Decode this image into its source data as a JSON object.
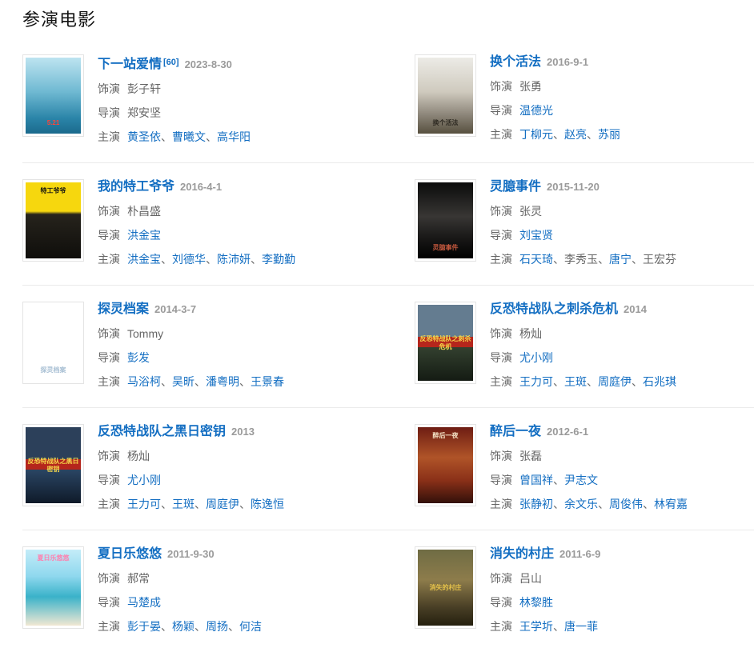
{
  "page": {
    "title": "参演电影"
  },
  "colors": {
    "link_blue": "#136ec2",
    "text_gray": "#666666",
    "date_gray": "#9a9a9a",
    "separator_line": "#ebebeb",
    "poster_border": "#e4e4e4",
    "heading": "#141414"
  },
  "labels": {
    "role": "饰演",
    "director": "导演",
    "starring": "主演",
    "name_separator": "、"
  },
  "movies": [
    {
      "title": "下一站爱情",
      "ref_sup": "[60]",
      "date": "2023-8-30",
      "role": "彭子轩",
      "directors": [
        {
          "text": "郑安坚",
          "link": false
        }
      ],
      "cast": [
        {
          "text": "黄圣依",
          "link": true
        },
        {
          "text": "曹曦文",
          "link": true
        },
        {
          "text": "高华阳",
          "link": true
        }
      ],
      "poster": {
        "colors": [
          "#bde4f0 0%",
          "#6fb9d2 45%",
          "#2a84a8 80%",
          "#1b6a8d 100%"
        ],
        "overlay": "5.21",
        "overlay_color": "#ff4438",
        "overlay_pos": "bottom"
      }
    },
    {
      "title": "换个活法",
      "ref_sup": "",
      "date": "2016-9-1",
      "role": "张勇",
      "directors": [
        {
          "text": "温德光",
          "link": true
        }
      ],
      "cast": [
        {
          "text": "丁柳元",
          "link": true
        },
        {
          "text": "赵亮",
          "link": true
        },
        {
          "text": "苏丽",
          "link": true
        }
      ],
      "poster": {
        "colors": [
          "#ecebe6 0%",
          "#cfcabe 45%",
          "#8d867a 75%",
          "#57503f 100%"
        ],
        "overlay": "换个活法",
        "overlay_color": "#2e2a22",
        "overlay_pos": "bottom"
      }
    },
    {
      "title": "我的特工爷爷",
      "ref_sup": "",
      "date": "2016-4-1",
      "role": "朴昌盛",
      "directors": [
        {
          "text": "洪金宝",
          "link": true
        }
      ],
      "cast": [
        {
          "text": "洪金宝",
          "link": true
        },
        {
          "text": "刘德华",
          "link": true
        },
        {
          "text": "陈沛妍",
          "link": true
        },
        {
          "text": "李勤勤",
          "link": true
        }
      ],
      "poster": {
        "colors": [
          "#f6d70e 0%",
          "#f6d70e 38%",
          "#26231c 42%",
          "#0f0e0b 100%"
        ],
        "overlay": "特工爷爷",
        "overlay_color": "#111111",
        "overlay_pos": "top"
      }
    },
    {
      "title": "灵臆事件",
      "ref_sup": "",
      "date": "2015-11-20",
      "role": "张灵",
      "directors": [
        {
          "text": "刘宝贤",
          "link": true
        }
      ],
      "cast": [
        {
          "text": "石天琦",
          "link": true
        },
        {
          "text": "李秀玉",
          "link": false
        },
        {
          "text": "唐宁",
          "link": true
        },
        {
          "text": "王宏芬",
          "link": false
        }
      ],
      "poster": {
        "colors": [
          "#0b0b0b 0%",
          "#383634 45%",
          "#1c1b1a 70%",
          "#000000 100%"
        ],
        "overlay": "灵臆事件",
        "overlay_color": "#c2573d",
        "overlay_pos": "bottom"
      }
    },
    {
      "title": "探灵档案",
      "ref_sup": "",
      "date": "2014-3-7",
      "role": "Tommy",
      "directors": [
        {
          "text": "彭发",
          "link": true
        }
      ],
      "cast": [
        {
          "text": "马浴柯",
          "link": true
        },
        {
          "text": "吴昕",
          "link": true
        },
        {
          "text": "潘粤明",
          "link": true
        },
        {
          "text": "王景春",
          "link": true
        }
      ],
      "poster": {
        "colors": [
          "#131c26 0%",
          "#2d4burned 0%",
          "#31506b 45%",
          "#0d141d 100%"
        ],
        "overlay": "探灵档案",
        "overlay_color": "#a9c0d4",
        "overlay_pos": "bottom"
      }
    },
    {
      "title": "反恐特战队之刺杀危机",
      "ref_sup": "",
      "date": "2014",
      "role": "杨灿",
      "directors": [
        {
          "text": "尤小刚",
          "link": true
        }
      ],
      "cast": [
        {
          "text": "王力可",
          "link": true
        },
        {
          "text": "王斑",
          "link": true
        },
        {
          "text": "周庭伊",
          "link": true
        },
        {
          "text": "石兆琪",
          "link": true
        }
      ],
      "poster": {
        "colors": [
          "#647c90 0%",
          "#647c90 42%",
          "#b5261c 42%",
          "#b5261c 56%",
          "#33402f 56%",
          "#141b13 100%"
        ],
        "overlay": "反恐特战队之刺杀危机",
        "overlay_color": "#f6d84a",
        "overlay_pos": "middle"
      }
    },
    {
      "title": "反恐特战队之黑日密钥",
      "ref_sup": "",
      "date": "2013",
      "role": "杨灿",
      "directors": [
        {
          "text": "尤小刚",
          "link": true
        }
      ],
      "cast": [
        {
          "text": "王力可",
          "link": true
        },
        {
          "text": "王斑",
          "link": true
        },
        {
          "text": "周庭伊",
          "link": true
        },
        {
          "text": "陈逸恒",
          "link": true
        }
      ],
      "poster": {
        "colors": [
          "#2c405a 0%",
          "#2c405a 42%",
          "#b5261c 42%",
          "#b5261c 56%",
          "#2a4563 56%",
          "#0f1a29 100%"
        ],
        "overlay": "反恐特战队之黑日密钥",
        "overlay_color": "#f6d84a",
        "overlay_pos": "middle"
      }
    },
    {
      "title": "醉后一夜",
      "ref_sup": "",
      "date": "2012-6-1",
      "role": "张磊",
      "directors": [
        {
          "text": "曾国祥",
          "link": true
        },
        {
          "text": "尹志文",
          "link": true
        }
      ],
      "cast": [
        {
          "text": "张静初",
          "link": true
        },
        {
          "text": "余文乐",
          "link": true
        },
        {
          "text": "周俊伟",
          "link": true
        },
        {
          "text": "林宥嘉",
          "link": true
        }
      ],
      "poster": {
        "colors": [
          "#6e1d13 0%",
          "#b05428 40%",
          "#8a3018 70%",
          "#32100a 100%"
        ],
        "overlay": "醉后一夜",
        "overlay_color": "#f4e3c6",
        "overlay_pos": "top"
      }
    },
    {
      "title": "夏日乐悠悠",
      "ref_sup": "",
      "date": "2011-9-30",
      "role": "郝常",
      "directors": [
        {
          "text": "马楚成",
          "link": true
        }
      ],
      "cast": [
        {
          "text": "彭于晏",
          "link": true
        },
        {
          "text": "杨颖",
          "link": true
        },
        {
          "text": "周扬",
          "link": true
        },
        {
          "text": "何洁",
          "link": true
        }
      ],
      "poster": {
        "colors": [
          "#c4ecf8 0%",
          "#8fd8ee 35%",
          "#3ab2c9 62%",
          "#f1e8d3 100%"
        ],
        "overlay": "夏日乐悠悠",
        "overlay_color": "#ff7fae",
        "overlay_pos": "top"
      }
    },
    {
      "title": "消失的村庄",
      "ref_sup": "",
      "date": "2011-6-9",
      "role": "吕山",
      "directors": [
        {
          "text": "林黎胜",
          "link": true
        }
      ],
      "cast": [
        {
          "text": "王学圻",
          "link": true
        },
        {
          "text": "唐一菲",
          "link": true
        }
      ],
      "poster": {
        "colors": [
          "#6f6c44 0%",
          "#8d7c4b 40%",
          "#4a4026 75%",
          "#25200f 100%"
        ],
        "overlay": "消失的村庄",
        "overlay_color": "#e6c24a",
        "overlay_pos": "middle"
      }
    }
  ]
}
